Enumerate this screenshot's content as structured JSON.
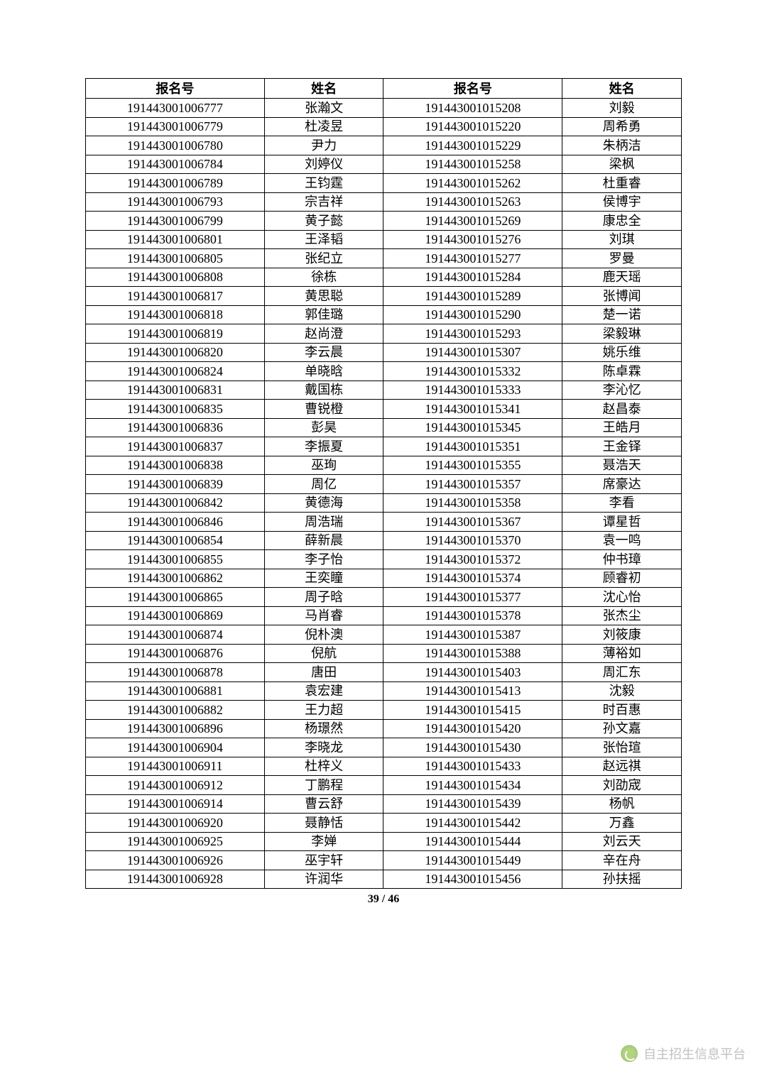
{
  "table": {
    "headers": {
      "id1": "报名号",
      "name1": "姓名",
      "id2": "报名号",
      "name2": "姓名"
    },
    "rows": [
      {
        "id1": "191443001006777",
        "name1": "张瀚文",
        "id2": "191443001015208",
        "name2": "刘毅"
      },
      {
        "id1": "191443001006779",
        "name1": "杜凌昱",
        "id2": "191443001015220",
        "name2": "周希勇"
      },
      {
        "id1": "191443001006780",
        "name1": "尹力",
        "id2": "191443001015229",
        "name2": "朱柄洁"
      },
      {
        "id1": "191443001006784",
        "name1": "刘婷仪",
        "id2": "191443001015258",
        "name2": "梁枫"
      },
      {
        "id1": "191443001006789",
        "name1": "王钧霆",
        "id2": "191443001015262",
        "name2": "杜重睿"
      },
      {
        "id1": "191443001006793",
        "name1": "宗吉祥",
        "id2": "191443001015263",
        "name2": "侯博宇"
      },
      {
        "id1": "191443001006799",
        "name1": "黄子懿",
        "id2": "191443001015269",
        "name2": "康忠全"
      },
      {
        "id1": "191443001006801",
        "name1": "王泽韬",
        "id2": "191443001015276",
        "name2": "刘琪"
      },
      {
        "id1": "191443001006805",
        "name1": "张纪立",
        "id2": "191443001015277",
        "name2": "罗曼"
      },
      {
        "id1": "191443001006808",
        "name1": "徐栋",
        "id2": "191443001015284",
        "name2": "鹿天瑶"
      },
      {
        "id1": "191443001006817",
        "name1": "黄思聪",
        "id2": "191443001015289",
        "name2": "张博闻"
      },
      {
        "id1": "191443001006818",
        "name1": "郭佳璐",
        "id2": "191443001015290",
        "name2": "楚一诺"
      },
      {
        "id1": "191443001006819",
        "name1": "赵尚澄",
        "id2": "191443001015293",
        "name2": "梁毅琳"
      },
      {
        "id1": "191443001006820",
        "name1": "李云晨",
        "id2": "191443001015307",
        "name2": "姚乐维"
      },
      {
        "id1": "191443001006824",
        "name1": "单晓晗",
        "id2": "191443001015332",
        "name2": "陈卓霖"
      },
      {
        "id1": "191443001006831",
        "name1": "戴国栋",
        "id2": "191443001015333",
        "name2": "李沁忆"
      },
      {
        "id1": "191443001006835",
        "name1": "曹锐橙",
        "id2": "191443001015341",
        "name2": "赵昌泰"
      },
      {
        "id1": "191443001006836",
        "name1": "彭昊",
        "id2": "191443001015345",
        "name2": "王皓月"
      },
      {
        "id1": "191443001006837",
        "name1": "李振夏",
        "id2": "191443001015351",
        "name2": "王金铎"
      },
      {
        "id1": "191443001006838",
        "name1": "巫珣",
        "id2": "191443001015355",
        "name2": "聂浩天"
      },
      {
        "id1": "191443001006839",
        "name1": "周亿",
        "id2": "191443001015357",
        "name2": "席豪达"
      },
      {
        "id1": "191443001006842",
        "name1": "黄德海",
        "id2": "191443001015358",
        "name2": "李看"
      },
      {
        "id1": "191443001006846",
        "name1": "周浩瑞",
        "id2": "191443001015367",
        "name2": "谭星哲"
      },
      {
        "id1": "191443001006854",
        "name1": "薛新晨",
        "id2": "191443001015370",
        "name2": "袁一鸣"
      },
      {
        "id1": "191443001006855",
        "name1": "李子怡",
        "id2": "191443001015372",
        "name2": "仲书璋"
      },
      {
        "id1": "191443001006862",
        "name1": "王奕瞳",
        "id2": "191443001015374",
        "name2": "顾睿初"
      },
      {
        "id1": "191443001006865",
        "name1": "周子晗",
        "id2": "191443001015377",
        "name2": "沈心怡"
      },
      {
        "id1": "191443001006869",
        "name1": "马肖睿",
        "id2": "191443001015378",
        "name2": "张杰尘"
      },
      {
        "id1": "191443001006874",
        "name1": "倪朴澳",
        "id2": "191443001015387",
        "name2": "刘筱康"
      },
      {
        "id1": "191443001006876",
        "name1": "倪航",
        "id2": "191443001015388",
        "name2": "薄裕如"
      },
      {
        "id1": "191443001006878",
        "name1": "唐田",
        "id2": "191443001015403",
        "name2": "周汇东"
      },
      {
        "id1": "191443001006881",
        "name1": "袁宏建",
        "id2": "191443001015413",
        "name2": "沈毅"
      },
      {
        "id1": "191443001006882",
        "name1": "王力超",
        "id2": "191443001015415",
        "name2": "时百惠"
      },
      {
        "id1": "191443001006896",
        "name1": "杨璟然",
        "id2": "191443001015420",
        "name2": "孙文嘉"
      },
      {
        "id1": "191443001006904",
        "name1": "李晓龙",
        "id2": "191443001015430",
        "name2": "张怡瑄"
      },
      {
        "id1": "191443001006911",
        "name1": "杜梓义",
        "id2": "191443001015433",
        "name2": "赵远祺"
      },
      {
        "id1": "191443001006912",
        "name1": "丁鹏程",
        "id2": "191443001015434",
        "name2": "刘劭宬"
      },
      {
        "id1": "191443001006914",
        "name1": "曹云舒",
        "id2": "191443001015439",
        "name2": "杨帆"
      },
      {
        "id1": "191443001006920",
        "name1": "聂静恬",
        "id2": "191443001015442",
        "name2": "万鑫"
      },
      {
        "id1": "191443001006925",
        "name1": "李婵",
        "id2": "191443001015444",
        "name2": "刘云天"
      },
      {
        "id1": "191443001006926",
        "name1": "巫宇轩",
        "id2": "191443001015449",
        "name2": "辛在舟"
      },
      {
        "id1": "191443001006928",
        "name1": "许润华",
        "id2": "191443001015456",
        "name2": "孙扶摇"
      }
    ]
  },
  "styling": {
    "border_color": "#000000",
    "background_color": "#ffffff",
    "font_size_cell": 18,
    "font_size_header": 18,
    "row_height": 26.5,
    "column_widths": [
      "30%",
      "20%",
      "30%",
      "20%"
    ]
  },
  "page_number": "39 / 46",
  "watermark": {
    "text": "自主招生信息平台"
  }
}
